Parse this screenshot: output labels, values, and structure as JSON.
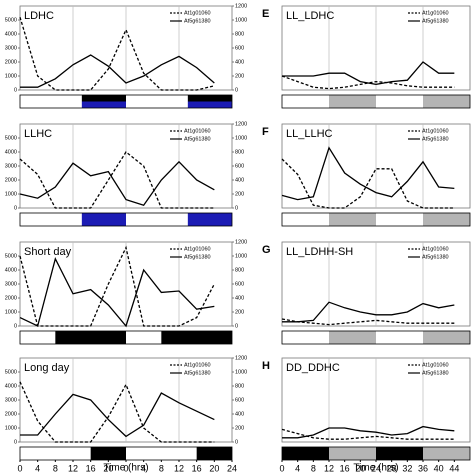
{
  "chart_data": [
    {
      "type": "line",
      "title": "LDHC",
      "legend": "upper right",
      "x": [
        0,
        4,
        8,
        12,
        16,
        20,
        24,
        28,
        32,
        36,
        40,
        44
      ],
      "xlim": [
        0,
        48
      ],
      "ylim": [
        0,
        6000
      ],
      "yticks": [
        0,
        1000,
        2000,
        3000,
        4000,
        5000
      ],
      "y2lim": [
        0,
        1200
      ],
      "y2ticks": [
        0,
        200,
        400,
        600,
        800,
        1000,
        1200
      ],
      "vlines": [
        12,
        24,
        36
      ],
      "series": [
        {
          "name": "At1g01060",
          "color": "#000000",
          "dash": true,
          "values": [
            5200,
            1000,
            0,
            0,
            0,
            1500,
            4300,
            1200,
            0,
            0,
            0,
            300
          ]
        },
        {
          "name": "At5g61380",
          "color": "#000000",
          "axis": "y2",
          "values": [
            40,
            40,
            160,
            360,
            500,
            340,
            100,
            200,
            360,
            480,
            320,
            100
          ]
        }
      ],
      "light_dark": [
        {
          "start": 0,
          "end": 14,
          "color": "#ffffff"
        },
        {
          "start": 14,
          "end": 24,
          "color": "#000000",
          "color2": "#1c1cb4"
        },
        {
          "start": 24,
          "end": 38,
          "color": "#ffffff"
        },
        {
          "start": 38,
          "end": 48,
          "color": "#000000",
          "color2": "#1c1cb4"
        }
      ]
    },
    {
      "type": "line",
      "title": "LLHC",
      "legend": "upper right",
      "x": [
        0,
        4,
        8,
        12,
        16,
        20,
        24,
        28,
        32,
        36,
        40,
        44
      ],
      "xlim": [
        0,
        48
      ],
      "ylim": [
        0,
        6000
      ],
      "yticks": [
        0,
        1000,
        2000,
        3000,
        4000,
        5000
      ],
      "y2lim": [
        0,
        1200
      ],
      "y2ticks": [
        0,
        200,
        400,
        600,
        800,
        1000,
        1200
      ],
      "vlines": [
        12,
        24,
        36
      ],
      "series": [
        {
          "name": "At1g01060",
          "color": "#000000",
          "dash": true,
          "values": [
            3500,
            2400,
            0,
            0,
            0,
            2000,
            4000,
            3000,
            0,
            0,
            0,
            0
          ]
        },
        {
          "name": "At5g61380",
          "color": "#000000",
          "axis": "y2",
          "values": [
            200,
            140,
            300,
            640,
            460,
            520,
            120,
            40,
            400,
            660,
            400,
            260
          ]
        }
      ],
      "light_dark": [
        {
          "start": 0,
          "end": 14,
          "color": "#ffffff"
        },
        {
          "start": 14,
          "end": 24,
          "color": "#1c1cb4"
        },
        {
          "start": 24,
          "end": 38,
          "color": "#ffffff"
        },
        {
          "start": 38,
          "end": 48,
          "color": "#1c1cb4"
        }
      ]
    },
    {
      "type": "line",
      "title": "Short day",
      "legend": "upper right",
      "x": [
        0,
        4,
        8,
        12,
        16,
        20,
        24,
        28,
        32,
        36,
        40,
        44
      ],
      "xlim": [
        0,
        48
      ],
      "ylim": [
        0,
        6000
      ],
      "yticks": [
        0,
        1000,
        2000,
        3000,
        4000,
        5000
      ],
      "y2lim": [
        0,
        1200
      ],
      "y2ticks": [
        0,
        200,
        400,
        600,
        800,
        1000,
        1200
      ],
      "vlines": [
        12,
        24,
        36
      ],
      "series": [
        {
          "name": "At1g01060",
          "color": "#000000",
          "dash": true,
          "values": [
            5000,
            0,
            0,
            0,
            0,
            3000,
            5600,
            0,
            0,
            0,
            600,
            3000
          ]
        },
        {
          "name": "At5g61380",
          "color": "#000000",
          "axis": "y2",
          "values": [
            120,
            0,
            960,
            460,
            520,
            300,
            0,
            800,
            480,
            500,
            240,
            280
          ]
        }
      ],
      "light_dark": [
        {
          "start": 0,
          "end": 8,
          "color": "#ffffff"
        },
        {
          "start": 8,
          "end": 24,
          "color": "#000000"
        },
        {
          "start": 24,
          "end": 32,
          "color": "#ffffff"
        },
        {
          "start": 32,
          "end": 48,
          "color": "#000000"
        }
      ]
    },
    {
      "type": "line",
      "title": "Long day",
      "legend": "upper right",
      "x": [
        0,
        4,
        8,
        12,
        16,
        20,
        24,
        28,
        32,
        36,
        40,
        44
      ],
      "xlim": [
        0,
        48
      ],
      "ylim": [
        0,
        6000
      ],
      "yticks": [
        0,
        1000,
        2000,
        3000,
        4000,
        5000
      ],
      "y2lim": [
        0,
        1200
      ],
      "y2ticks": [
        0,
        200,
        400,
        600,
        800,
        1000,
        1200
      ],
      "vlines": [
        12,
        24,
        36
      ],
      "xlabel": "Time (hrs)",
      "xticks": [
        0,
        4,
        8,
        12,
        16,
        20,
        {
          "value": 24,
          "label": "0"
        },
        {
          "value": 28,
          "label": "4"
        },
        {
          "value": 32,
          "label": "8"
        },
        {
          "value": 36,
          "label": "12"
        },
        {
          "value": 40,
          "label": "16"
        },
        {
          "value": 44,
          "label": "20"
        },
        {
          "value": 48,
          "label": "24"
        }
      ],
      "series": [
        {
          "name": "At1g01060",
          "color": "#000000",
          "dash": true,
          "values": [
            4300,
            1500,
            0,
            0,
            0,
            1800,
            4100,
            1000,
            0,
            0,
            0,
            0
          ]
        },
        {
          "name": "At5g61380",
          "color": "#000000",
          "axis": "y2",
          "values": [
            100,
            100,
            400,
            680,
            600,
            320,
            80,
            240,
            700,
            560,
            440,
            320
          ]
        }
      ],
      "light_dark": [
        {
          "start": 0,
          "end": 16,
          "color": "#ffffff"
        },
        {
          "start": 16,
          "end": 24,
          "color": "#000000"
        },
        {
          "start": 24,
          "end": 40,
          "color": "#ffffff"
        },
        {
          "start": 40,
          "end": 48,
          "color": "#000000"
        }
      ]
    },
    {
      "type": "line",
      "label": "E",
      "title": "LL_LDHC",
      "legend": "upper right",
      "x": [
        0,
        4,
        8,
        12,
        16,
        20,
        24,
        28,
        32,
        36,
        40,
        44
      ],
      "xlim": [
        0,
        48
      ],
      "ylim": [
        0,
        6000
      ],
      "y2lim": [
        0,
        1200
      ],
      "vlines": [
        12,
        24,
        36
      ],
      "series": [
        {
          "name": "At1g01060",
          "color": "#000000",
          "dash": true,
          "values": [
            1000,
            600,
            200,
            100,
            200,
            400,
            600,
            500,
            300,
            200,
            200,
            200
          ]
        },
        {
          "name": "At5g61380",
          "color": "#000000",
          "axis": "y2",
          "values": [
            200,
            200,
            200,
            240,
            240,
            120,
            80,
            120,
            140,
            400,
            240,
            240
          ]
        }
      ],
      "light_dark": [
        {
          "start": 0,
          "end": 12,
          "color": "#ffffff"
        },
        {
          "start": 12,
          "end": 24,
          "color": "#b4b4b4"
        },
        {
          "start": 24,
          "end": 36,
          "color": "#ffffff"
        },
        {
          "start": 36,
          "end": 48,
          "color": "#b4b4b4"
        }
      ]
    },
    {
      "type": "line",
      "label": "F",
      "title": "LL_LLHC",
      "legend": "upper right",
      "x": [
        0,
        4,
        8,
        12,
        16,
        20,
        24,
        28,
        32,
        36,
        40,
        44
      ],
      "xlim": [
        0,
        48
      ],
      "ylim": [
        0,
        6000
      ],
      "y2lim": [
        0,
        1200
      ],
      "vlines": [
        12,
        24,
        36
      ],
      "series": [
        {
          "name": "At1g01060",
          "color": "#000000",
          "dash": true,
          "values": [
            3500,
            2400,
            200,
            0,
            0,
            800,
            2800,
            2800,
            500,
            0,
            0,
            0
          ]
        },
        {
          "name": "At5g61380",
          "color": "#000000",
          "axis": "y2",
          "values": [
            180,
            120,
            160,
            860,
            500,
            340,
            220,
            160,
            380,
            660,
            300,
            280
          ]
        }
      ],
      "light_dark": [
        {
          "start": 0,
          "end": 12,
          "color": "#ffffff"
        },
        {
          "start": 12,
          "end": 24,
          "color": "#b4b4b4"
        },
        {
          "start": 24,
          "end": 36,
          "color": "#ffffff"
        },
        {
          "start": 36,
          "end": 48,
          "color": "#b4b4b4"
        }
      ]
    },
    {
      "type": "line",
      "label": "G",
      "title": "LL_LDHH-SH",
      "legend": "upper right",
      "x": [
        0,
        4,
        8,
        12,
        16,
        20,
        24,
        28,
        32,
        36,
        40,
        44
      ],
      "xlim": [
        0,
        48
      ],
      "ylim": [
        0,
        6000
      ],
      "y2lim": [
        0,
        1200
      ],
      "vlines": [
        12,
        24,
        36
      ],
      "series": [
        {
          "name": "At1g01060",
          "color": "#000000",
          "dash": true,
          "values": [
            500,
            300,
            200,
            100,
            200,
            300,
            400,
            300,
            200,
            200,
            200,
            200
          ]
        },
        {
          "name": "At5g61380",
          "color": "#000000",
          "axis": "y2",
          "values": [
            60,
            60,
            80,
            340,
            260,
            200,
            160,
            160,
            200,
            320,
            260,
            300
          ]
        }
      ],
      "light_dark": [
        {
          "start": 0,
          "end": 12,
          "color": "#ffffff"
        },
        {
          "start": 12,
          "end": 24,
          "color": "#b4b4b4"
        },
        {
          "start": 24,
          "end": 36,
          "color": "#ffffff"
        },
        {
          "start": 36,
          "end": 48,
          "color": "#b4b4b4"
        }
      ]
    },
    {
      "type": "line",
      "label": "H",
      "title": "DD_DDHC",
      "legend": "upper right",
      "x": [
        0,
        4,
        8,
        12,
        16,
        20,
        24,
        28,
        32,
        36,
        40,
        44
      ],
      "xlim": [
        0,
        48
      ],
      "ylim": [
        0,
        6000
      ],
      "y2lim": [
        0,
        1200
      ],
      "vlines": [
        12,
        24,
        36
      ],
      "xlabel": "Time (hrs)",
      "xticks": [
        0,
        4,
        8,
        12,
        16,
        20,
        24,
        28,
        32,
        36,
        40,
        44
      ],
      "series": [
        {
          "name": "At1g01060",
          "color": "#000000",
          "dash": true,
          "values": [
            900,
            600,
            300,
            200,
            200,
            300,
            400,
            300,
            200,
            200,
            200,
            200
          ]
        },
        {
          "name": "At5g61380",
          "color": "#000000",
          "axis": "y2",
          "values": [
            60,
            60,
            100,
            200,
            200,
            160,
            140,
            100,
            120,
            220,
            180,
            160
          ]
        }
      ],
      "light_dark": [
        {
          "start": 0,
          "end": 12,
          "color": "#000000"
        },
        {
          "start": 12,
          "end": 24,
          "color": "#b4b4b4"
        },
        {
          "start": 24,
          "end": 36,
          "color": "#000000"
        },
        {
          "start": 36,
          "end": 48,
          "color": "#b4b4b4"
        }
      ]
    }
  ]
}
